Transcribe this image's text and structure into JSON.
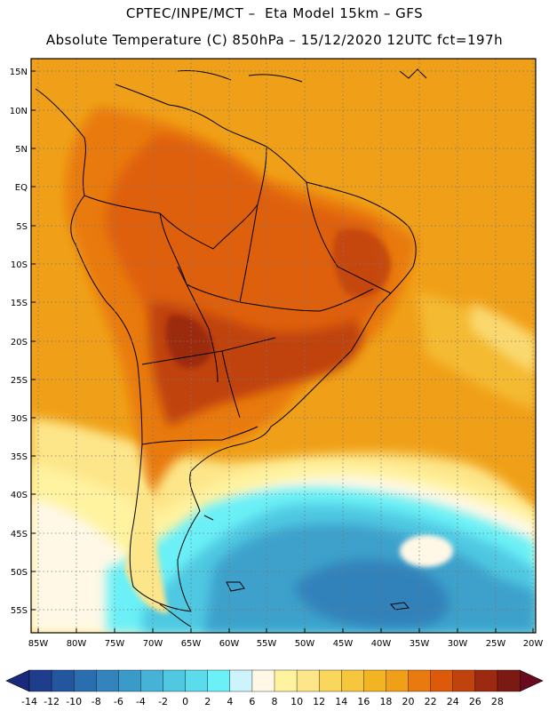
{
  "header": {
    "title_line1": "CPTEC/INPE/MCT –  Eta Model 15km – GFS",
    "title_line2": "Absolute Temperature (C) 850hPa – 15/12/2020 12UTC fct=197h"
  },
  "map": {
    "lat_labels": [
      "15N",
      "10N",
      "5N",
      "EQ",
      "5S",
      "10S",
      "15S",
      "20S",
      "25S",
      "30S",
      "35S",
      "40S",
      "45S",
      "50S",
      "55S"
    ],
    "lon_labels": [
      "85W",
      "80W",
      "75W",
      "70W",
      "65W",
      "60W",
      "55W",
      "50W",
      "45W",
      "40W",
      "35W",
      "30W",
      "25W",
      "20W"
    ]
  },
  "colorbar": {
    "labels": [
      "-14",
      "-12",
      "-10",
      "-8",
      "-6",
      "-4",
      "-2",
      "0",
      "2",
      "4",
      "6",
      "8",
      "10",
      "12",
      "14",
      "16",
      "18",
      "20",
      "22",
      "24",
      "26",
      "28"
    ],
    "colors": [
      "#1e3d8c",
      "#2456a0",
      "#2b6eb0",
      "#3384bd",
      "#3a9bc8",
      "#46b2d6",
      "#50c8e2",
      "#5adcec",
      "#6af0f6",
      "#cdf4fa",
      "#fff8e6",
      "#fff3a0",
      "#fde68a",
      "#f9d65c",
      "#f6c63c",
      "#f2b423",
      "#f0a018",
      "#e97a10",
      "#dc5a0a",
      "#c0420c",
      "#9c2a10",
      "#7a1a12"
    ],
    "low_arrow_color": "#1a2a7a",
    "high_arrow_color": "#6a0a1e"
  }
}
